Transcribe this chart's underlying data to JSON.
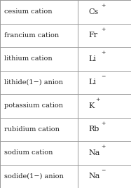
{
  "rows": [
    {
      "name": "cesium cation",
      "formula": "Cs",
      "charge": "+"
    },
    {
      "name": "francium cation",
      "formula": "Fr",
      "charge": "+"
    },
    {
      "name": "lithium cation",
      "formula": "Li",
      "charge": "+"
    },
    {
      "name": "lithide(1−) anion",
      "formula": "Li",
      "charge": "−"
    },
    {
      "name": "potassium cation",
      "formula": "K",
      "charge": "+"
    },
    {
      "name": "rubidium cation",
      "formula": "Rb",
      "charge": "+"
    },
    {
      "name": "sodium cation",
      "formula": "Na",
      "charge": "+"
    },
    {
      "name": "sodide(1−) anion",
      "formula": "Na",
      "charge": "−"
    }
  ],
  "col_split": 0.595,
  "bg_color": "#ffffff",
  "border_color": "#999999",
  "text_color": "#222222",
  "font_size_name": 7.0,
  "font_size_formula": 8.0,
  "font_size_superscript": 5.5
}
